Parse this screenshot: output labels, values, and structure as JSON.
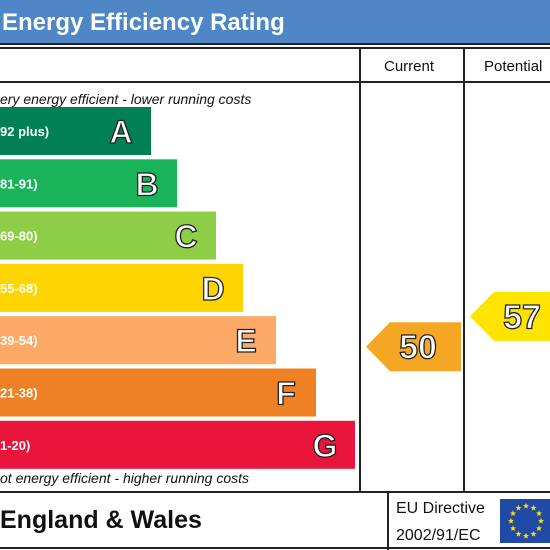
{
  "header": {
    "title": "Energy Efficiency Rating",
    "col_current": "Current",
    "col_potential": "Potential"
  },
  "notes": {
    "top": "ery energy efficient - lower running costs",
    "bottom": "ot energy efficient - higher running costs"
  },
  "footer": {
    "country": "England & Wales",
    "directive_line1": "EU Directive",
    "directive_line2": "2002/91/EC"
  },
  "chart_data": {
    "type": "bar",
    "bands": [
      {
        "letter": "A",
        "range": "92 plus)",
        "color": "#008054"
      },
      {
        "letter": "B",
        "range": "81-91)",
        "color": "#19b459"
      },
      {
        "letter": "C",
        "range": "69-80)",
        "color": "#8dce46"
      },
      {
        "letter": "D",
        "range": "55-68)",
        "color": "#ffd500"
      },
      {
        "letter": "E",
        "range": "39-54)",
        "color": "#fcaa65"
      },
      {
        "letter": "F",
        "range": "21-38)",
        "color": "#ef8023"
      },
      {
        "letter": "G",
        "range": "1-20)",
        "color": "#e9153b"
      }
    ],
    "current": {
      "value": 50,
      "band": "E",
      "color": "#f5a623"
    },
    "potential": {
      "value": 57,
      "band": "D",
      "color": "#ffe400"
    }
  },
  "flag": {
    "color": "#1f4ba6",
    "star_color": "#ffdd00",
    "star_count": 12
  }
}
